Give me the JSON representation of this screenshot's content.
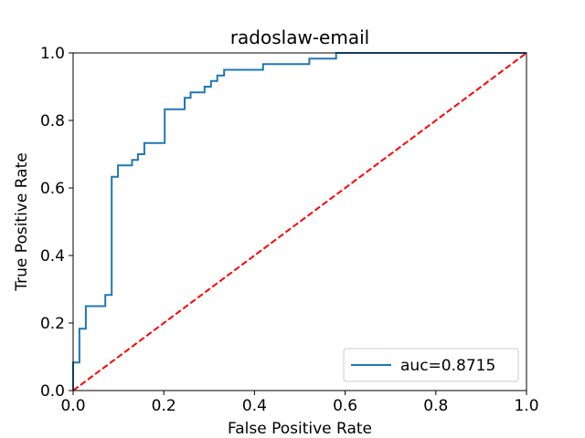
{
  "chart_data": {
    "type": "line",
    "title": "radoslaw-email",
    "xlabel": "False Positive Rate",
    "ylabel": "True Positive Rate",
    "xlim": [
      0.0,
      1.0
    ],
    "ylim": [
      0.0,
      1.0
    ],
    "xticks": [
      "0.0",
      "0.2",
      "0.4",
      "0.6",
      "0.8",
      "1.0"
    ],
    "yticks": [
      "0.0",
      "0.2",
      "0.4",
      "0.6",
      "0.8",
      "1.0"
    ],
    "grid": false,
    "legend_position": "lower-right",
    "series": [
      {
        "name": "auc=0.8715",
        "color": "#1f77b4",
        "style": "solid",
        "x": [
          0.0,
          0.0,
          0.014,
          0.014,
          0.028,
          0.028,
          0.071,
          0.071,
          0.085,
          0.085,
          0.099,
          0.099,
          0.13,
          0.13,
          0.143,
          0.143,
          0.157,
          0.157,
          0.202,
          0.202,
          0.246,
          0.246,
          0.259,
          0.259,
          0.29,
          0.29,
          0.304,
          0.304,
          0.318,
          0.318,
          0.333,
          0.333,
          0.419,
          0.419,
          0.521,
          0.521,
          0.58,
          0.58,
          1.0
        ],
        "y": [
          0.0,
          0.083,
          0.083,
          0.183,
          0.183,
          0.25,
          0.25,
          0.283,
          0.283,
          0.633,
          0.633,
          0.667,
          0.667,
          0.683,
          0.683,
          0.7,
          0.7,
          0.733,
          0.733,
          0.833,
          0.833,
          0.867,
          0.867,
          0.883,
          0.883,
          0.9,
          0.9,
          0.917,
          0.917,
          0.933,
          0.933,
          0.95,
          0.95,
          0.967,
          0.967,
          0.983,
          0.983,
          1.0,
          1.0
        ]
      },
      {
        "color": "#ff0000",
        "style": "dashed",
        "x": [
          0.0,
          1.0
        ],
        "y": [
          0.0,
          1.0
        ]
      }
    ]
  }
}
